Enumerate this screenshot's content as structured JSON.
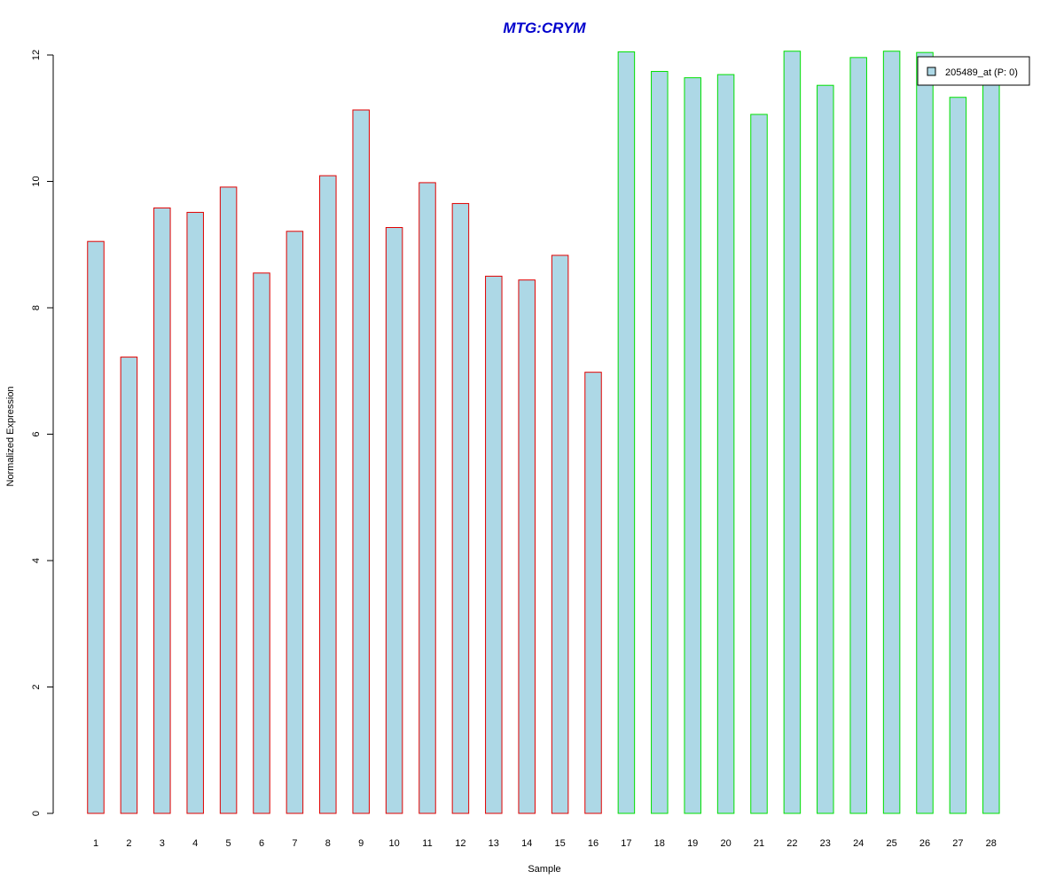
{
  "chart_data": {
    "type": "bar",
    "title": "MTG:CRYM",
    "xlabel": "Sample",
    "ylabel": "Normalized Expression",
    "ylim": [
      0,
      12
    ],
    "yticks": [
      "0",
      "2",
      "4",
      "6",
      "8",
      "10",
      "12"
    ],
    "categories": [
      "1",
      "2",
      "3",
      "4",
      "5",
      "6",
      "7",
      "8",
      "9",
      "10",
      "11",
      "12",
      "13",
      "14",
      "15",
      "16",
      "17",
      "18",
      "19",
      "20",
      "21",
      "22",
      "23",
      "24",
      "25",
      "26",
      "27",
      "28"
    ],
    "series": [
      {
        "name": "205489_at (P: 0)",
        "values": [
          9.05,
          7.22,
          9.58,
          9.51,
          9.91,
          8.55,
          9.21,
          10.09,
          11.13,
          9.27,
          9.98,
          9.65,
          8.5,
          8.44,
          8.83,
          6.98,
          12.05,
          11.74,
          11.64,
          11.69,
          11.06,
          12.06,
          11.52,
          11.96,
          12.06,
          12.04,
          11.33,
          11.62
        ]
      }
    ],
    "group_outline_colors": [
      "#e00000",
      "#e00000",
      "#e00000",
      "#e00000",
      "#e00000",
      "#e00000",
      "#e00000",
      "#e00000",
      "#e00000",
      "#e00000",
      "#e00000",
      "#e00000",
      "#e00000",
      "#e00000",
      "#e00000",
      "#e00000",
      "#00e000",
      "#00e000",
      "#00e000",
      "#00e000",
      "#00e000",
      "#00e000",
      "#00e000",
      "#00e000",
      "#00e000",
      "#00e000",
      "#00e000",
      "#00e000"
    ],
    "bar_fill_color": "#add8e6",
    "title_color": "#0000cc",
    "grid": false,
    "legend_position": "top-right"
  }
}
